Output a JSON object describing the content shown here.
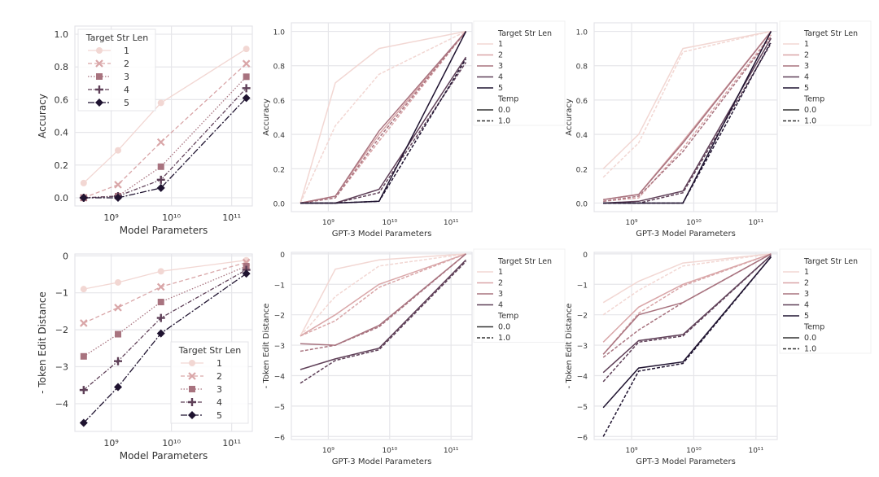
{
  "palette": [
    "#f2d7d3",
    "#d9a6a8",
    "#a8737f",
    "#5f4058",
    "#1f1330"
  ],
  "chart_data": [
    {
      "id": "tl",
      "type": "line",
      "xscale": "log",
      "xlabel": "Model Parameters",
      "ylabel": "Accuracy",
      "xlim": [
        250000000.0,
        220000000000.0
      ],
      "ylim": [
        -0.05,
        1.05
      ],
      "xticks": [
        {
          "v": 1000000000.0,
          "label": "10⁹"
        },
        {
          "v": 10000000000.0,
          "label": "10¹⁰"
        },
        {
          "v": 100000000000.0,
          "label": "10¹¹"
        }
      ],
      "yticks": [
        {
          "v": 0.0,
          "label": "0.0"
        },
        {
          "v": 0.2,
          "label": "0.2"
        },
        {
          "v": 0.4,
          "label": "0.4"
        },
        {
          "v": 0.6,
          "label": "0.6"
        },
        {
          "v": 0.8,
          "label": "0.8"
        },
        {
          "v": 1.0,
          "label": "1.0"
        }
      ],
      "grid": true,
      "x": [
        350000000.0,
        1300000000.0,
        6700000000.0,
        175000000000.0
      ],
      "legend": {
        "title": "Target Str Len",
        "placement": "upper-left"
      },
      "series": [
        {
          "name": "1",
          "marker": "circle",
          "dash": "solid",
          "values": [
            0.09,
            0.29,
            0.58,
            0.91
          ]
        },
        {
          "name": "2",
          "marker": "x",
          "dash": "dashed",
          "values": [
            0.0,
            0.08,
            0.34,
            0.82
          ]
        },
        {
          "name": "3",
          "marker": "square",
          "dash": "dotted",
          "values": [
            0.0,
            0.01,
            0.19,
            0.74
          ]
        },
        {
          "name": "4",
          "marker": "plus",
          "dash": "dashdot",
          "values": [
            0.0,
            0.01,
            0.11,
            0.67
          ]
        },
        {
          "name": "5",
          "marker": "diamond",
          "dash": "longdash",
          "values": [
            0.0,
            0.0,
            0.06,
            0.61
          ]
        }
      ]
    },
    {
      "id": "bl",
      "type": "line",
      "xscale": "log",
      "xlabel": "Model Parameters",
      "ylabel": "- Token Edit Distance",
      "xlim": [
        250000000.0,
        220000000000.0
      ],
      "ylim": [
        -4.75,
        0.05
      ],
      "xticks": [
        {
          "v": 1000000000.0,
          "label": "10⁹"
        },
        {
          "v": 10000000000.0,
          "label": "10¹⁰"
        },
        {
          "v": 100000000000.0,
          "label": "10¹¹"
        }
      ],
      "yticks": [
        {
          "v": 0,
          "label": "0"
        },
        {
          "v": -1,
          "label": "−1"
        },
        {
          "v": -2,
          "label": "−2"
        },
        {
          "v": -3,
          "label": "−3"
        },
        {
          "v": -4,
          "label": "−4"
        }
      ],
      "grid": true,
      "x": [
        350000000.0,
        1300000000.0,
        6700000000.0,
        175000000000.0
      ],
      "legend": {
        "title": "Target Str Len",
        "placement": "lower-right"
      },
      "series": [
        {
          "name": "1",
          "marker": "circle",
          "dash": "solid",
          "values": [
            -0.9,
            -0.72,
            -0.42,
            -0.12
          ]
        },
        {
          "name": "2",
          "marker": "x",
          "dash": "dashed",
          "values": [
            -1.82,
            -1.4,
            -0.84,
            -0.18
          ]
        },
        {
          "name": "3",
          "marker": "square",
          "dash": "dotted",
          "values": [
            -2.72,
            -2.12,
            -1.25,
            -0.28
          ]
        },
        {
          "name": "4",
          "marker": "plus",
          "dash": "dashdot",
          "values": [
            -3.63,
            -2.85,
            -1.68,
            -0.38
          ]
        },
        {
          "name": "5",
          "marker": "diamond",
          "dash": "longdash",
          "values": [
            -4.52,
            -3.55,
            -2.1,
            -0.48
          ]
        }
      ]
    },
    {
      "id": "tm",
      "type": "line",
      "xscale": "log",
      "xlabel": "GPT-3 Model Parameters",
      "ylabel": "Accuracy",
      "xlim": [
        250000000.0,
        220000000000.0
      ],
      "ylim": [
        -0.05,
        1.05
      ],
      "xticks": [
        {
          "v": 1000000000.0,
          "label": "10⁹"
        },
        {
          "v": 10000000000.0,
          "label": "10¹⁰"
        },
        {
          "v": 100000000000.0,
          "label": "10¹¹"
        }
      ],
      "yticks": [
        {
          "v": 0.0,
          "label": "0.0"
        },
        {
          "v": 0.2,
          "label": "0.2"
        },
        {
          "v": 0.4,
          "label": "0.4"
        },
        {
          "v": 0.6,
          "label": "0.6"
        },
        {
          "v": 0.8,
          "label": "0.8"
        },
        {
          "v": 1.0,
          "label": "1.0"
        }
      ],
      "grid": true,
      "x": [
        350000000.0,
        1300000000.0,
        6700000000.0,
        175000000000.0
      ],
      "legend": {
        "title": "Target Str Len",
        "entries": [
          "1",
          "2",
          "3",
          "4",
          "5"
        ],
        "title2": "Temp",
        "entries2": [
          "0.0",
          "1.0"
        ],
        "placement": "outside-right"
      },
      "series": [
        {
          "name": "1",
          "temp": "0.0",
          "values": [
            0.0,
            0.7,
            0.9,
            1.0
          ]
        },
        {
          "name": "1",
          "temp": "1.0",
          "values": [
            0.0,
            0.45,
            0.75,
            1.0
          ]
        },
        {
          "name": "2",
          "temp": "0.0",
          "values": [
            0.0,
            0.04,
            0.4,
            1.0
          ]
        },
        {
          "name": "2",
          "temp": "1.0",
          "values": [
            0.0,
            0.03,
            0.36,
            1.0
          ]
        },
        {
          "name": "3",
          "temp": "0.0",
          "values": [
            0.0,
            0.04,
            0.42,
            1.0
          ]
        },
        {
          "name": "3",
          "temp": "1.0",
          "values": [
            0.0,
            0.03,
            0.38,
            1.0
          ]
        },
        {
          "name": "4",
          "temp": "0.0",
          "values": [
            0.0,
            0.0,
            0.08,
            0.85
          ]
        },
        {
          "name": "4",
          "temp": "1.0",
          "values": [
            0.0,
            0.0,
            0.06,
            0.82
          ]
        },
        {
          "name": "5",
          "temp": "0.0",
          "values": [
            0.0,
            0.0,
            0.01,
            1.0
          ]
        },
        {
          "name": "5",
          "temp": "1.0",
          "values": [
            0.0,
            0.0,
            0.01,
            0.84
          ]
        }
      ]
    },
    {
      "id": "bm",
      "type": "line",
      "xscale": "log",
      "xlabel": "GPT-3 Model Parameters",
      "ylabel": "- Token Edit Distance",
      "xlim": [
        250000000.0,
        220000000000.0
      ],
      "ylim": [
        -6.1,
        0.05
      ],
      "xticks": [
        {
          "v": 1000000000.0,
          "label": "10⁹"
        },
        {
          "v": 10000000000.0,
          "label": "10¹⁰"
        },
        {
          "v": 100000000000.0,
          "label": "10¹¹"
        }
      ],
      "yticks": [
        {
          "v": 0,
          "label": "0"
        },
        {
          "v": -1,
          "label": "−1"
        },
        {
          "v": -2,
          "label": "−2"
        },
        {
          "v": -3,
          "label": "−3"
        },
        {
          "v": -4,
          "label": "−4"
        },
        {
          "v": -5,
          "label": "−5"
        },
        {
          "v": -6,
          "label": "−6"
        }
      ],
      "grid": true,
      "x": [
        350000000.0,
        1300000000.0,
        6700000000.0,
        175000000000.0
      ],
      "legend": {
        "title": "Target Str Len",
        "entries": [
          "1",
          "2",
          "3",
          "4"
        ],
        "title2": "Temp",
        "entries2": [
          "0.0",
          "1.0"
        ],
        "placement": "outside-right"
      },
      "series": [
        {
          "name": "1",
          "temp": "0.0",
          "values": [
            -2.7,
            -0.5,
            -0.2,
            0.0
          ]
        },
        {
          "name": "1",
          "temp": "1.0",
          "values": [
            -2.7,
            -1.4,
            -0.4,
            0.0
          ]
        },
        {
          "name": "2",
          "temp": "0.0",
          "values": [
            -2.7,
            -2.0,
            -1.0,
            0.0
          ]
        },
        {
          "name": "2",
          "temp": "1.0",
          "values": [
            -2.7,
            -2.2,
            -1.1,
            0.0
          ]
        },
        {
          "name": "3",
          "temp": "0.0",
          "values": [
            -2.95,
            -3.0,
            -2.35,
            0.0
          ]
        },
        {
          "name": "3",
          "temp": "1.0",
          "values": [
            -3.2,
            -3.0,
            -2.4,
            0.0
          ]
        },
        {
          "name": "4",
          "temp": "0.0",
          "values": [
            -3.8,
            -3.45,
            -3.1,
            -0.2
          ]
        },
        {
          "name": "4",
          "temp": "1.0",
          "values": [
            -4.25,
            -3.5,
            -3.15,
            -0.25
          ]
        }
      ]
    },
    {
      "id": "tr",
      "type": "line",
      "xscale": "log",
      "xlabel": "GPT-3 Model Parameters",
      "ylabel": "Accuracy",
      "xlim": [
        250000000.0,
        220000000000.0
      ],
      "ylim": [
        -0.05,
        1.05
      ],
      "xticks": [
        {
          "v": 1000000000.0,
          "label": "10⁹"
        },
        {
          "v": 10000000000.0,
          "label": "10¹⁰"
        },
        {
          "v": 100000000000.0,
          "label": "10¹¹"
        }
      ],
      "yticks": [
        {
          "v": 0.0,
          "label": "0.0"
        },
        {
          "v": 0.2,
          "label": "0.2"
        },
        {
          "v": 0.4,
          "label": "0.4"
        },
        {
          "v": 0.6,
          "label": "0.6"
        },
        {
          "v": 0.8,
          "label": "0.8"
        },
        {
          "v": 1.0,
          "label": "1.0"
        }
      ],
      "grid": true,
      "x": [
        350000000.0,
        1300000000.0,
        6700000000.0,
        175000000000.0
      ],
      "legend": {
        "title": "Target Str Len",
        "entries": [
          "1",
          "2",
          "3",
          "4",
          "5"
        ],
        "title2": "Temp",
        "entries2": [
          "0.0",
          "1.0"
        ],
        "placement": "outside-right"
      },
      "series": [
        {
          "name": "1",
          "temp": "0.0",
          "values": [
            0.2,
            0.4,
            0.9,
            1.0
          ]
        },
        {
          "name": "1",
          "temp": "1.0",
          "values": [
            0.15,
            0.35,
            0.88,
            1.0
          ]
        },
        {
          "name": "2",
          "temp": "0.0",
          "values": [
            0.02,
            0.05,
            0.36,
            1.0
          ]
        },
        {
          "name": "2",
          "temp": "1.0",
          "values": [
            0.01,
            0.03,
            0.32,
            0.98
          ]
        },
        {
          "name": "3",
          "temp": "0.0",
          "values": [
            0.02,
            0.05,
            0.35,
            1.0
          ]
        },
        {
          "name": "3",
          "temp": "1.0",
          "values": [
            0.01,
            0.04,
            0.3,
            0.97
          ]
        },
        {
          "name": "4",
          "temp": "0.0",
          "values": [
            0.0,
            0.01,
            0.07,
            0.96
          ]
        },
        {
          "name": "4",
          "temp": "1.0",
          "values": [
            0.0,
            0.0,
            0.06,
            0.93
          ]
        },
        {
          "name": "5",
          "temp": "0.0",
          "values": [
            0.0,
            0.0,
            0.0,
            1.0
          ]
        },
        {
          "name": "5",
          "temp": "1.0",
          "values": [
            0.0,
            0.0,
            0.0,
            0.94
          ]
        }
      ]
    },
    {
      "id": "br",
      "type": "line",
      "xscale": "log",
      "xlabel": "GPT-3 Model Parameters",
      "ylabel": "- Token Edit Distance",
      "xlim": [
        250000000.0,
        220000000000.0
      ],
      "ylim": [
        -6.1,
        0.05
      ],
      "xticks": [
        {
          "v": 1000000000.0,
          "label": "10⁹"
        },
        {
          "v": 10000000000.0,
          "label": "10¹⁰"
        },
        {
          "v": 100000000000.0,
          "label": "10¹¹"
        }
      ],
      "yticks": [
        {
          "v": 0,
          "label": "0"
        },
        {
          "v": -1,
          "label": "−1"
        },
        {
          "v": -2,
          "label": "−2"
        },
        {
          "v": -3,
          "label": "−3"
        },
        {
          "v": -4,
          "label": "−4"
        },
        {
          "v": -5,
          "label": "−5"
        },
        {
          "v": -6,
          "label": "−6"
        }
      ],
      "grid": true,
      "x": [
        350000000.0,
        1300000000.0,
        6700000000.0,
        175000000000.0
      ],
      "legend": {
        "title": "Target Str Len",
        "entries": [
          "1",
          "2",
          "3",
          "4",
          "5"
        ],
        "title2": "Temp",
        "entries2": [
          "0.0",
          "1.0"
        ],
        "placement": "outside-right"
      },
      "series": [
        {
          "name": "1",
          "temp": "0.0",
          "values": [
            -1.6,
            -0.9,
            -0.3,
            0.0
          ]
        },
        {
          "name": "1",
          "temp": "1.0",
          "values": [
            -2.0,
            -1.2,
            -0.4,
            0.0
          ]
        },
        {
          "name": "2",
          "temp": "0.0",
          "values": [
            -2.9,
            -1.75,
            -1.0,
            0.0
          ]
        },
        {
          "name": "2",
          "temp": "1.0",
          "values": [
            -3.3,
            -1.95,
            -1.05,
            0.0
          ]
        },
        {
          "name": "3",
          "temp": "0.0",
          "values": [
            -3.3,
            -2.0,
            -1.6,
            0.0
          ]
        },
        {
          "name": "3",
          "temp": "1.0",
          "values": [
            -3.4,
            -2.5,
            -1.6,
            0.0
          ]
        },
        {
          "name": "4",
          "temp": "0.0",
          "values": [
            -3.9,
            -2.85,
            -2.65,
            -0.05
          ]
        },
        {
          "name": "4",
          "temp": "1.0",
          "values": [
            -4.2,
            -2.9,
            -2.7,
            -0.05
          ]
        },
        {
          "name": "5",
          "temp": "0.0",
          "values": [
            -5.05,
            -3.75,
            -3.55,
            -0.1
          ]
        },
        {
          "name": "5",
          "temp": "1.0",
          "values": [
            -6.0,
            -3.85,
            -3.6,
            -0.1
          ]
        }
      ]
    }
  ]
}
